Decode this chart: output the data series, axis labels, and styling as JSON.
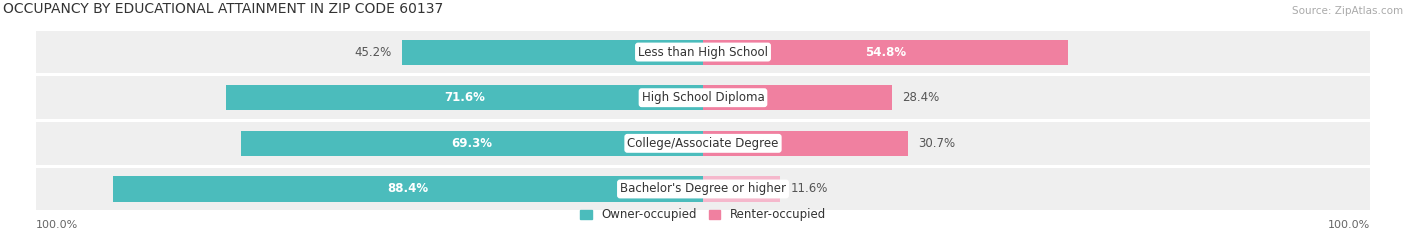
{
  "title": "OCCUPANCY BY EDUCATIONAL ATTAINMENT IN ZIP CODE 60137",
  "source": "Source: ZipAtlas.com",
  "categories": [
    "Bachelor's Degree or higher",
    "College/Associate Degree",
    "High School Diploma",
    "Less than High School"
  ],
  "owner_pct": [
    88.4,
    69.3,
    71.6,
    45.2
  ],
  "renter_pct": [
    11.6,
    30.7,
    28.4,
    54.8
  ],
  "owner_color": "#4bbcbc",
  "renter_color": "#f080a0",
  "renter_color_light": "#f5b8cc",
  "bg_row_color": "#efefef",
  "bg_gap_color": "#e0e0e0",
  "title_fontsize": 10,
  "label_fontsize": 8.5,
  "axis_label_fontsize": 8,
  "legend_fontsize": 8.5
}
